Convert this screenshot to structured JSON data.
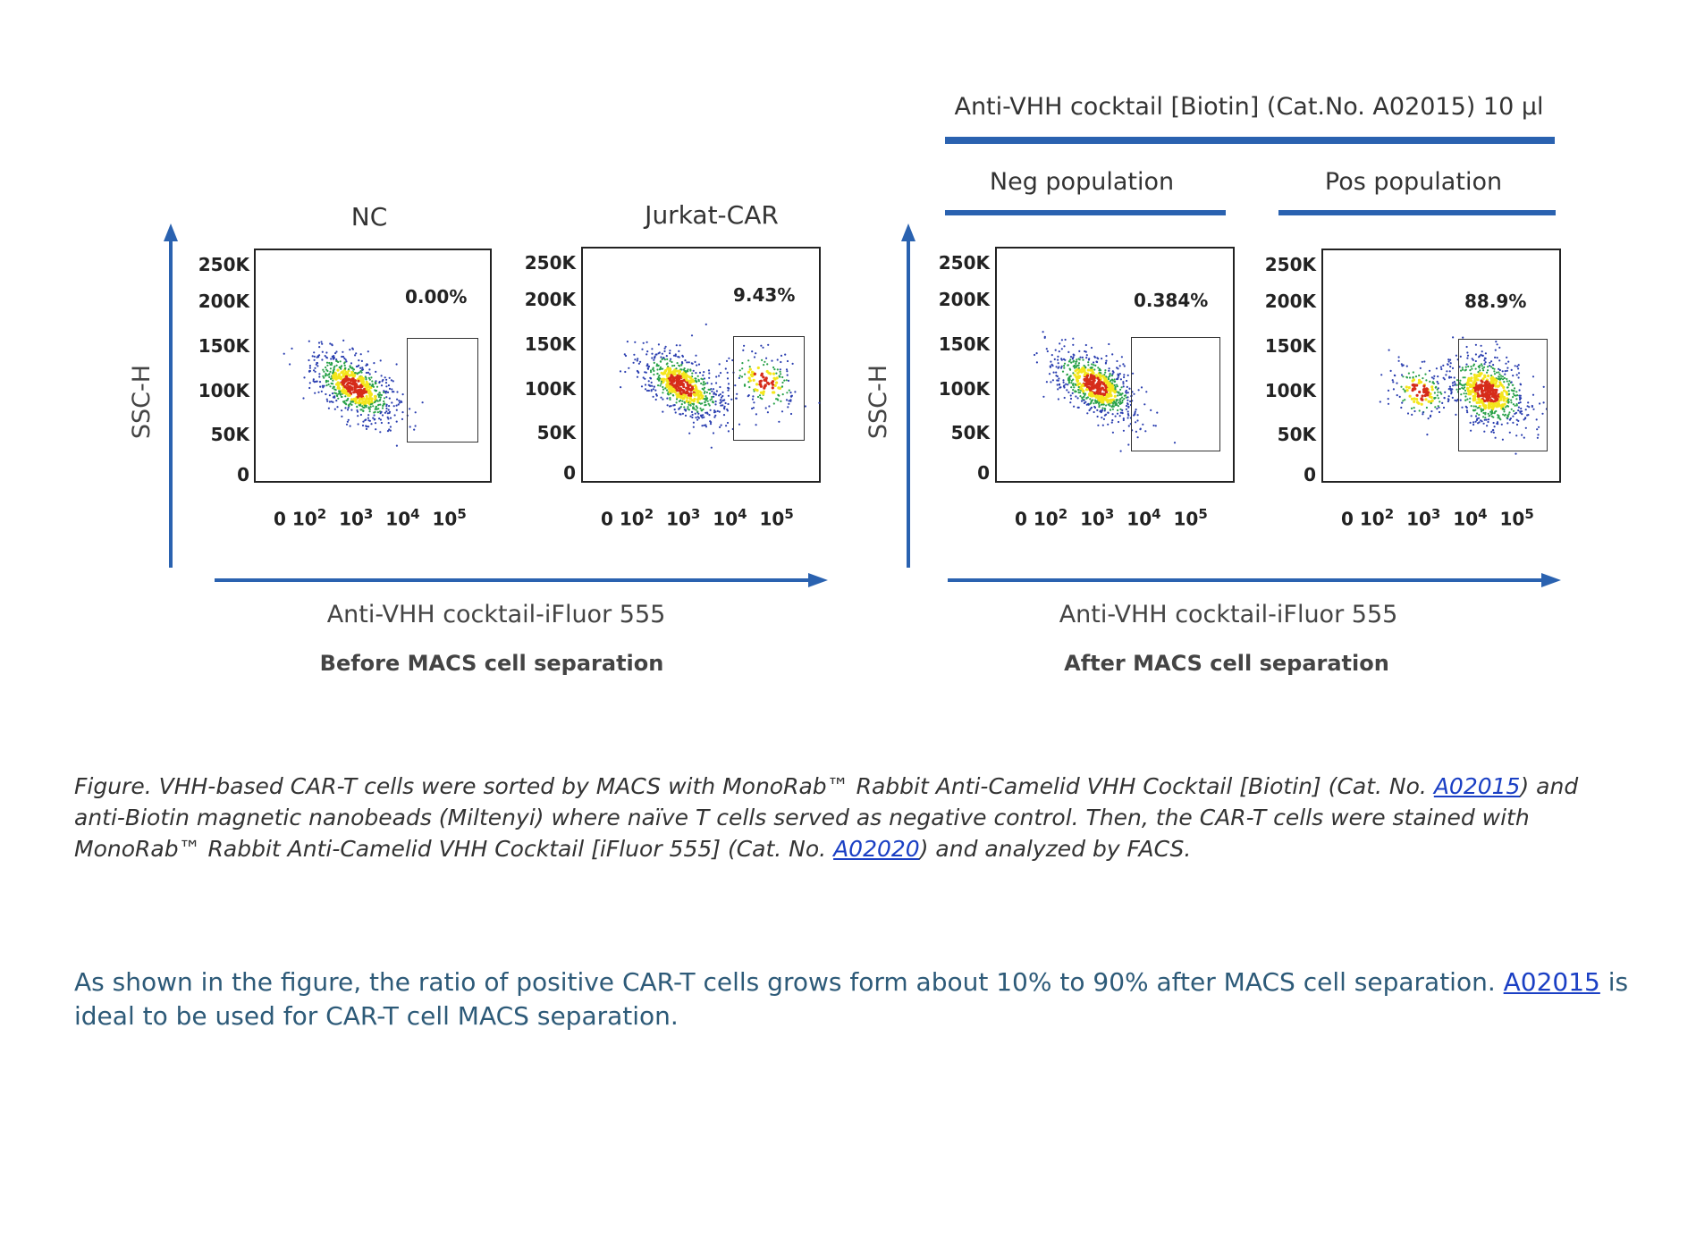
{
  "figure": {
    "top_header": "Anti-VHH cocktail [Biotin] (Cat.No. A02015) 10 μl",
    "neg_header": "Neg population",
    "pos_header": "Pos population",
    "y_axis_label": "SSC-H",
    "y_ticks": [
      "250K",
      "200K",
      "150K",
      "100K",
      "50K",
      "0"
    ],
    "x_axis_label_left": "Anti-VHH cocktail-iFluor 555",
    "x_axis_label_right": "Anti-VHH cocktail-iFluor 555",
    "section_left": "Before MACS cell separation",
    "section_right": "After MACS cell separation",
    "panels": [
      {
        "title": "NC",
        "percent": "0.00%"
      },
      {
        "title": "Jurkat-CAR",
        "percent": "9.43%"
      },
      {
        "title": "",
        "percent": "0.384%"
      },
      {
        "title": "",
        "percent": "88.9%"
      }
    ],
    "colors": {
      "accent": "#2a62b0",
      "dense": "#d62c1a",
      "mid": "#f4e61c",
      "low": "#2aa24a",
      "sparse": "#2b3fb0"
    }
  },
  "caption": {
    "part1": "Figure. VHH-based CAR-T cells were sorted by MACS with MonoRab™ Rabbit Anti-Camelid VHH Cocktail [Biotin] (Cat. No. ",
    "link1": "A02015",
    "part2": ") and anti-Biotin magnetic nanobeads (Miltenyi) where naïve T cells served as negative control. Then, the CAR-T cells were stained with MonoRab™ Rabbit Anti-Camelid VHH Cocktail [iFluor 555] (Cat. No. ",
    "link2": "A02020",
    "part3": ") and analyzed by FACS."
  },
  "paragraph": {
    "part1": "As shown in the figure, the ratio of positive CAR-T cells grows form about 10% to 90% after MACS cell separation. ",
    "link": "A02015",
    "part2": " is ideal to be used for CAR-T cell MACS separation."
  }
}
